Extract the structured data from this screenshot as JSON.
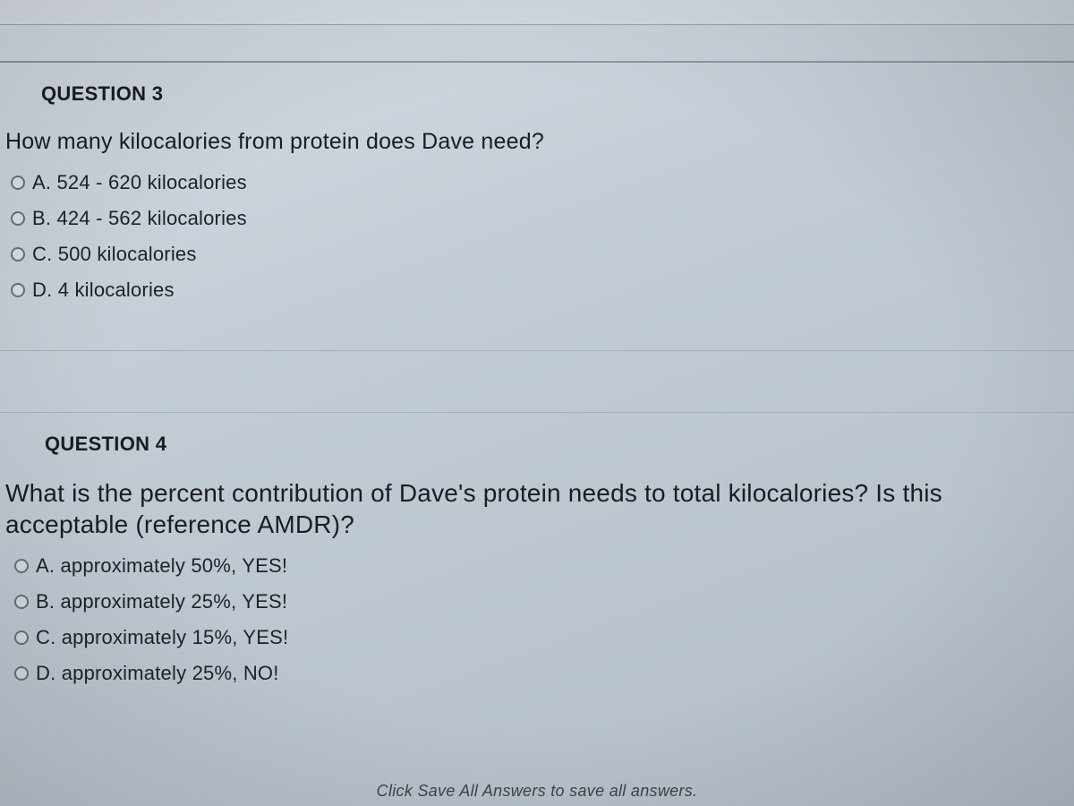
{
  "question3": {
    "heading": "QUESTION 3",
    "prompt": "How many kilocalories from protein does Dave need?",
    "options": {
      "a": "A. 524 - 620 kilocalories",
      "b": "B. 424 - 562 kilocalories",
      "c": "C. 500 kilocalories",
      "d": "D. 4 kilocalories"
    }
  },
  "question4": {
    "heading": "QUESTION 4",
    "prompt": "What is the percent contribution of Dave's protein needs to total kilocalories? Is this acceptable (reference AMDR)?",
    "options": {
      "a": "A. approximately 50%, YES!",
      "b": "B. approximately 25%, YES!",
      "c": "C. approximately 15%, YES!",
      "d": "D. approximately 25%, NO!"
    }
  },
  "footer": {
    "hint": "Click Save All Answers to save all answers."
  },
  "style": {
    "text_color": "#1a1d20",
    "radio_border": "#6b7078",
    "heading_fontsize": 22,
    "prompt_fontsize_q3": 25,
    "prompt_fontsize_q4": 28,
    "option_fontsize": 22
  }
}
